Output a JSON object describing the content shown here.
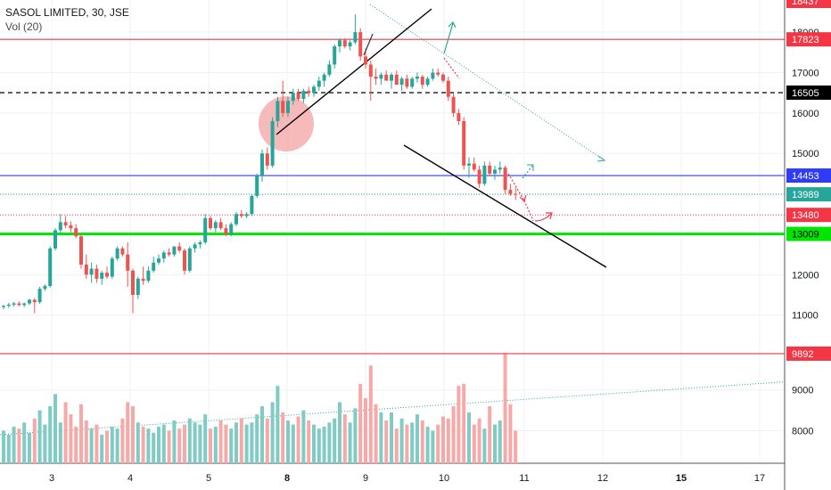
{
  "chart_data": {
    "type": "candlestick",
    "title": "SASOL LIMITED, 30, JSE",
    "indicator_label": "Vol (20)",
    "x_ticks": [
      "3",
      "4",
      "5",
      "8",
      "9",
      "10",
      "11",
      "12",
      "15",
      "17"
    ],
    "y_ticks": [
      11000,
      12000,
      13000,
      14000,
      15000,
      16000,
      17000,
      18000
    ],
    "y_range": [
      10200,
      18400
    ],
    "volume_axis_ticks": [
      8000,
      9000
    ],
    "colors": {
      "up": "#26a69a",
      "down": "#ef5350",
      "up_volume": "#80cbc4",
      "down_volume": "#f7a9a7",
      "resistance": "#f23645",
      "support": "#00e600",
      "blue_level": "#2e3cf5",
      "current_price": "#26a69a",
      "dashed_level": "#000000",
      "trendline": "#000000",
      "highlight_circle": "#f4a3a3"
    },
    "price_levels": [
      {
        "label": "17823",
        "value": 17823,
        "style": "solid-red"
      },
      {
        "label": "16505",
        "value": 16505,
        "style": "dashed-black"
      },
      {
        "label": "14453",
        "value": 14453,
        "style": "solid-blue"
      },
      {
        "label": "13989",
        "value": 13989,
        "style": "dotted-teal"
      },
      {
        "label": "13480",
        "value": 13480,
        "style": "dotted-red"
      },
      {
        "label": "13009",
        "value": 13009,
        "style": "solid-green"
      }
    ],
    "volume_level": {
      "label": "9892",
      "value": 9892
    },
    "top_price_label": "18437",
    "candles": [
      [
        11200,
        11250,
        11150,
        11230
      ],
      [
        11230,
        11300,
        11180,
        11260
      ],
      [
        11260,
        11330,
        11210,
        11290
      ],
      [
        11290,
        11340,
        11220,
        11250
      ],
      [
        11250,
        11310,
        11200,
        11290
      ],
      [
        11290,
        11400,
        11250,
        11380
      ],
      [
        11380,
        11420,
        11050,
        11320
      ],
      [
        11320,
        11700,
        11280,
        11650
      ],
      [
        11650,
        11760,
        11600,
        11720
      ],
      [
        11720,
        12700,
        11680,
        12650
      ],
      [
        12650,
        13150,
        12600,
        13100
      ],
      [
        13100,
        13500,
        13000,
        13300
      ],
      [
        13300,
        13450,
        13150,
        13220
      ],
      [
        13220,
        13320,
        13050,
        13150
      ],
      [
        13150,
        13250,
        12900,
        12950
      ],
      [
        12950,
        13000,
        12150,
        12250
      ],
      [
        12250,
        12500,
        11900,
        12000
      ],
      [
        12000,
        12300,
        11800,
        12150
      ],
      [
        12150,
        12250,
        11800,
        11900
      ],
      [
        11900,
        12100,
        11750,
        12050
      ],
      [
        12050,
        12200,
        11900,
        11950
      ],
      [
        11950,
        12450,
        11900,
        12400
      ],
      [
        12400,
        12700,
        12350,
        12650
      ],
      [
        12650,
        12700,
        12450,
        12500
      ],
      [
        12500,
        12800,
        11700,
        12100
      ],
      [
        12100,
        12150,
        11050,
        11500
      ],
      [
        11500,
        11950,
        11400,
        11900
      ],
      [
        11900,
        12200,
        11750,
        11850
      ],
      [
        11850,
        12200,
        11800,
        12100
      ],
      [
        12100,
        12450,
        12050,
        12300
      ],
      [
        12300,
        12500,
        12250,
        12400
      ],
      [
        12400,
        12600,
        12300,
        12550
      ],
      [
        12550,
        12650,
        12450,
        12500
      ],
      [
        12500,
        12700,
        12450,
        12700
      ],
      [
        12700,
        12800,
        12550,
        12600
      ],
      [
        12600,
        12650,
        12000,
        12100
      ],
      [
        12100,
        12700,
        12050,
        12650
      ],
      [
        12650,
        12800,
        12550,
        12750
      ],
      [
        12750,
        12850,
        12650,
        12800
      ],
      [
        12800,
        13500,
        12750,
        13400
      ],
      [
        13400,
        13450,
        13100,
        13150
      ],
      [
        13150,
        13350,
        13050,
        13300
      ],
      [
        13300,
        13400,
        13100,
        13150
      ],
      [
        13150,
        13250,
        12950,
        13000
      ],
      [
        13000,
        13300,
        12950,
        13250
      ],
      [
        13250,
        13550,
        13200,
        13500
      ],
      [
        13500,
        13600,
        13400,
        13450
      ],
      [
        13450,
        13550,
        13400,
        13500
      ],
      [
        13500,
        14000,
        13450,
        13950
      ],
      [
        13950,
        14500,
        13900,
        14450
      ],
      [
        14450,
        15100,
        14300,
        15000
      ],
      [
        15000,
        15150,
        14600,
        14700
      ],
      [
        14700,
        15900,
        14650,
        15800
      ],
      [
        15800,
        16400,
        15650,
        16300
      ],
      [
        16300,
        16800,
        15900,
        16000
      ],
      [
        16000,
        16400,
        15900,
        16300
      ],
      [
        16300,
        16600,
        16200,
        16500
      ],
      [
        16500,
        16600,
        16300,
        16350
      ],
      [
        16350,
        16600,
        16250,
        16550
      ],
      [
        16550,
        16650,
        16400,
        16500
      ],
      [
        16500,
        16700,
        16400,
        16650
      ],
      [
        16650,
        16900,
        16550,
        16800
      ],
      [
        16800,
        17000,
        16650,
        16950
      ],
      [
        16950,
        17300,
        16900,
        17200
      ],
      [
        17200,
        17700,
        17100,
        17650
      ],
      [
        17650,
        17850,
        17500,
        17800
      ],
      [
        17800,
        17850,
        17600,
        17650
      ],
      [
        17650,
        17800,
        17550,
        17750
      ],
      [
        17750,
        18437,
        17700,
        18000
      ],
      [
        18000,
        18100,
        17300,
        17400
      ],
      [
        17400,
        17600,
        17100,
        17200
      ],
      [
        17200,
        17300,
        16300,
        16900
      ],
      [
        16900,
        17100,
        16700,
        16850
      ],
      [
        16850,
        17000,
        16700,
        16950
      ],
      [
        16950,
        17050,
        16800,
        16800
      ],
      [
        16800,
        17000,
        16600,
        16950
      ],
      [
        16950,
        17050,
        16700,
        16700
      ],
      [
        16700,
        16900,
        16550,
        16850
      ],
      [
        16850,
        16950,
        16600,
        16650
      ],
      [
        16650,
        16900,
        16600,
        16850
      ],
      [
        16850,
        17000,
        16750,
        16900
      ],
      [
        16900,
        16950,
        16600,
        16700
      ],
      [
        16700,
        16900,
        16650,
        16850
      ],
      [
        16850,
        17100,
        16800,
        17000
      ],
      [
        17000,
        17100,
        16900,
        16950
      ],
      [
        16950,
        17000,
        16750,
        16800
      ],
      [
        16800,
        16900,
        16300,
        16400
      ],
      [
        16400,
        16500,
        15900,
        16000
      ],
      [
        16000,
        16100,
        15700,
        15800
      ],
      [
        15800,
        15900,
        14600,
        14700
      ],
      [
        14700,
        14900,
        14400,
        14750
      ],
      [
        14750,
        14900,
        14550,
        14600
      ],
      [
        14600,
        14700,
        14150,
        14250
      ],
      [
        14250,
        14800,
        14200,
        14700
      ],
      [
        14700,
        14800,
        14450,
        14500
      ],
      [
        14500,
        14700,
        14350,
        14600
      ],
      [
        14600,
        14800,
        14500,
        14650
      ],
      [
        14650,
        14700,
        14000,
        14100
      ],
      [
        14100,
        14250,
        13950,
        14000
      ],
      [
        14000,
        14150,
        13850,
        13989
      ]
    ],
    "volumes": [
      8000,
      7900,
      8100,
      8050,
      8200,
      7950,
      8300,
      8500,
      8150,
      8600,
      8900,
      8200,
      8700,
      8400,
      8100,
      8650,
      8250,
      8050,
      8150,
      7900,
      8000,
      8100,
      8050,
      8300,
      8700,
      8600,
      8200,
      8100,
      8050,
      7950,
      8100,
      8150,
      8000,
      8250,
      8050,
      8150,
      8300,
      8200,
      8150,
      8400,
      8050,
      8100,
      8250,
      8150,
      8050,
      8200,
      8300,
      8150,
      8200,
      8400,
      8600,
      8300,
      8700,
      9100,
      8450,
      8250,
      8150,
      8350,
      8500,
      8250,
      8150,
      8050,
      8100,
      8200,
      8300,
      8700,
      8400,
      8200,
      8550,
      9150,
      8800,
      9600,
      8650,
      8450,
      8250,
      8450,
      8050,
      8300,
      8150,
      8200,
      8400,
      8250,
      8100,
      8000,
      8150,
      8350,
      8300,
      8600,
      9100,
      9150,
      8450,
      8150,
      8300,
      8050,
      8600,
      8150,
      8250,
      9900,
      8650,
      8000
    ],
    "volume_ylim": [
      7200,
      10000
    ]
  }
}
